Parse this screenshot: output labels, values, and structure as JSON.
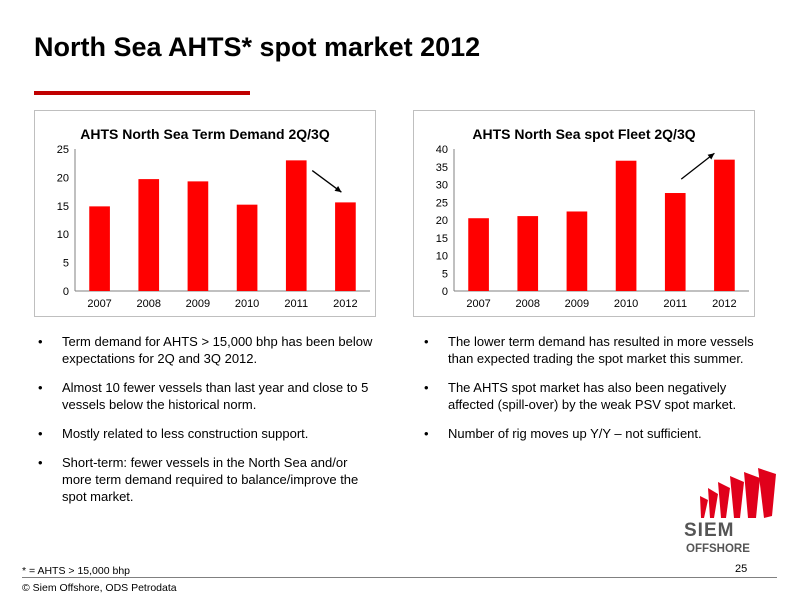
{
  "page": {
    "title": "North Sea AHTS* spot market 2012",
    "footnote": "* = AHTS > 15,000 bhp",
    "copyright": "© Siem Offshore, ODS Petrodata",
    "page_number": "25",
    "accent_color": "#c00000"
  },
  "logo": {
    "word1": "SIEM",
    "word2": "OFFSHORE"
  },
  "chart_data": [
    {
      "type": "bar",
      "title": "AHTS North Sea Term Demand 2Q/3Q",
      "categories": [
        "2007",
        "2008",
        "2009",
        "2010",
        "2011",
        "2012"
      ],
      "values": [
        14.9,
        19.7,
        19.3,
        15.2,
        23.0,
        15.6
      ],
      "ylim": [
        0,
        25
      ],
      "yticks": [
        0,
        5,
        10,
        15,
        20,
        25
      ],
      "grid": false,
      "bar_color": "#ff0000",
      "arrow": "down, from 2011 to 2012"
    },
    {
      "type": "bar",
      "title": "AHTS North Sea spot Fleet 2Q/3Q",
      "categories": [
        "2007",
        "2008",
        "2009",
        "2010",
        "2011",
        "2012"
      ],
      "values": [
        20.5,
        21.1,
        22.4,
        36.7,
        27.6,
        37.0
      ],
      "ylim": [
        0,
        40
      ],
      "yticks": [
        0,
        5,
        10,
        15,
        20,
        25,
        30,
        35,
        40
      ],
      "grid": false,
      "bar_color": "#ff0000",
      "arrow": "up, from 2011 to 2012"
    }
  ],
  "left_bullets": [
    "Term demand for AHTS > 15,000 bhp has been below expectations for 2Q and 3Q 2012.",
    "Almost 10 fewer vessels than last year and close to 5 vessels below the historical norm.",
    "Mostly related to less construction support.",
    "Short-term: fewer vessels in the North Sea and/or more term demand required to balance/improve the spot market."
  ],
  "right_bullets": [
    "The lower term demand has resulted in more vessels than expected trading the spot market this summer.",
    "The AHTS spot market has also been negatively affected (spill-over) by the weak PSV spot market.",
    "Number of rig moves up Y/Y – not sufficient."
  ],
  "bullet_symbol": "•"
}
